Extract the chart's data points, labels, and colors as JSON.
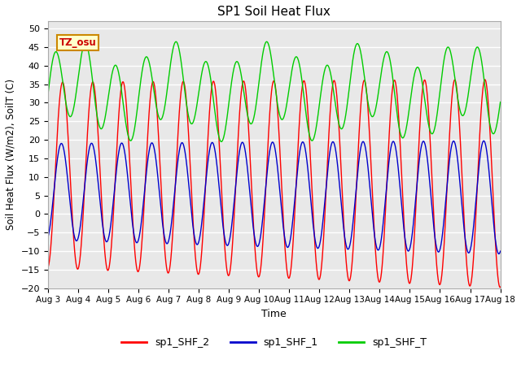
{
  "title": "SP1 Soil Heat Flux",
  "xlabel": "Time",
  "ylabel": "Soil Heat Flux (W/m2), SoilT (C)",
  "ylim": [
    -20,
    52
  ],
  "yticks": [
    -20,
    -15,
    -10,
    -5,
    0,
    5,
    10,
    15,
    20,
    25,
    30,
    35,
    40,
    45,
    50
  ],
  "xtick_labels": [
    "Aug 3",
    "Aug 4",
    "Aug 5",
    "Aug 6",
    "Aug 7",
    "Aug 8",
    "Aug 9",
    "Aug 10",
    "Aug 11",
    "Aug 12",
    "Aug 13",
    "Aug 14",
    "Aug 15",
    "Aug 16",
    "Aug 17",
    "Aug 18"
  ],
  "bg_color": "#e8e8e8",
  "grid_color": "white",
  "color_shf2": "#ff0000",
  "color_shf1": "#0000cc",
  "color_shfT": "#00cc00",
  "legend_label_2": "sp1_SHF_2",
  "legend_label_1": "sp1_SHF_1",
  "legend_label_T": "sp1_SHF_T",
  "tz_label": "TZ_osu",
  "n_days": 15,
  "n_points": 7200
}
